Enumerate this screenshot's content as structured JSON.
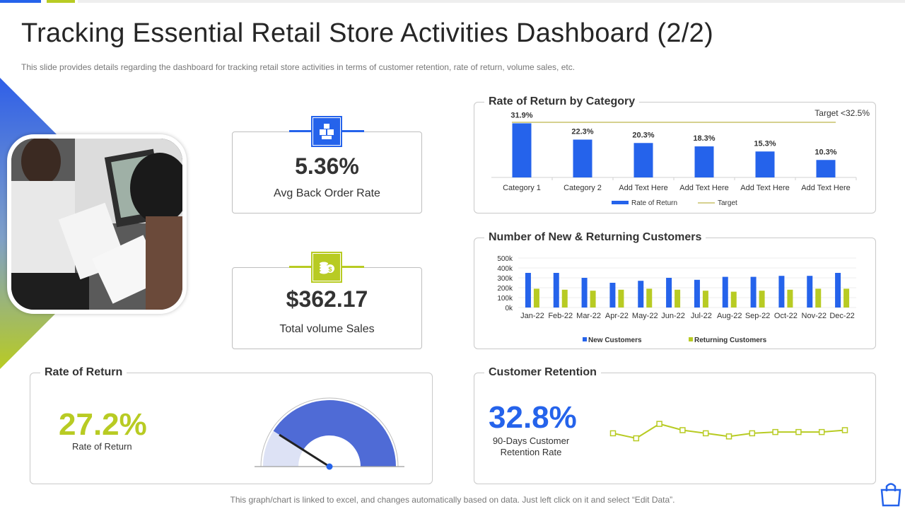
{
  "header": {
    "title": "Tracking Essential Retail Store Activities Dashboard (2/2)",
    "subtitle": "This slide provides  details regarding the dashboard for tracking retail store activities in terms of customer retention, rate of return, volume  sales, etc."
  },
  "colors": {
    "blue": "#2563eb",
    "lime": "#b8cb23",
    "gauge_blue": "#4f6bd6",
    "gauge_light": "#dde2f5"
  },
  "kpis": [
    {
      "value": "5.36%",
      "label": "Avg Back Order Rate",
      "icon": "boxes-icon"
    },
    {
      "value": "$362.17",
      "label": "Total volume  Sales",
      "icon": "coins-icon"
    }
  ],
  "rate_of_return": {
    "title": "Rate of Return",
    "value": "27.2%",
    "label": "Rate of Return",
    "gauge_fraction": 0.82
  },
  "retention": {
    "title": "Customer Retention",
    "value": "32.8%",
    "label_line1": "90-Days Customer",
    "label_line2": "Retention Rate",
    "sparkline": [
      40,
      32,
      55,
      45,
      40,
      35,
      40,
      42,
      42,
      42,
      45
    ]
  },
  "footer": {
    "note": "This graph/chart is linked to excel, and changes automatically based on data. Just left click on it and select “Edit Data”."
  },
  "chart_data": [
    {
      "type": "bar",
      "title": "Rate of Return by Category",
      "annotation": "Target  <32.5%",
      "categories": [
        "Category 1",
        "Category 2",
        "Add Text Here",
        "Add Text Here",
        "Add Text Here",
        "Add Text Here"
      ],
      "series": [
        {
          "name": "Rate of Return",
          "values": [
            31.9,
            22.3,
            20.3,
            18.3,
            15.3,
            10.3
          ]
        },
        {
          "name": "Target",
          "type": "line",
          "values": [
            32.5,
            32.5,
            32.5,
            32.5,
            32.5,
            32.5
          ]
        }
      ],
      "data_labels": [
        "31.9%",
        "22.3%",
        "20.3%",
        "18.3%",
        "15.3%",
        "10.3%"
      ],
      "ylim": [
        0,
        35
      ],
      "legend": "bottom"
    },
    {
      "type": "bar",
      "title": "Number of New & Returning Customers",
      "categories": [
        "Jan-22",
        "Feb-22",
        "Mar-22",
        "Apr-22",
        "May-22",
        "Jun-22",
        "Jul-22",
        "Aug-22",
        "Sep-22",
        "Oct-22",
        "Nov-22",
        "Dec-22"
      ],
      "series": [
        {
          "name": "New Customers",
          "values": [
            350000,
            350000,
            300000,
            250000,
            270000,
            300000,
            280000,
            310000,
            310000,
            320000,
            320000,
            350000
          ]
        },
        {
          "name": "Returning Customers",
          "values": [
            190000,
            180000,
            170000,
            180000,
            190000,
            180000,
            170000,
            160000,
            170000,
            180000,
            190000,
            190000
          ]
        }
      ],
      "yticks": [
        "0k",
        "100k",
        "200k",
        "300k",
        "400k",
        "500k"
      ],
      "ylim": [
        0,
        500000
      ],
      "legend": "bottom"
    }
  ]
}
